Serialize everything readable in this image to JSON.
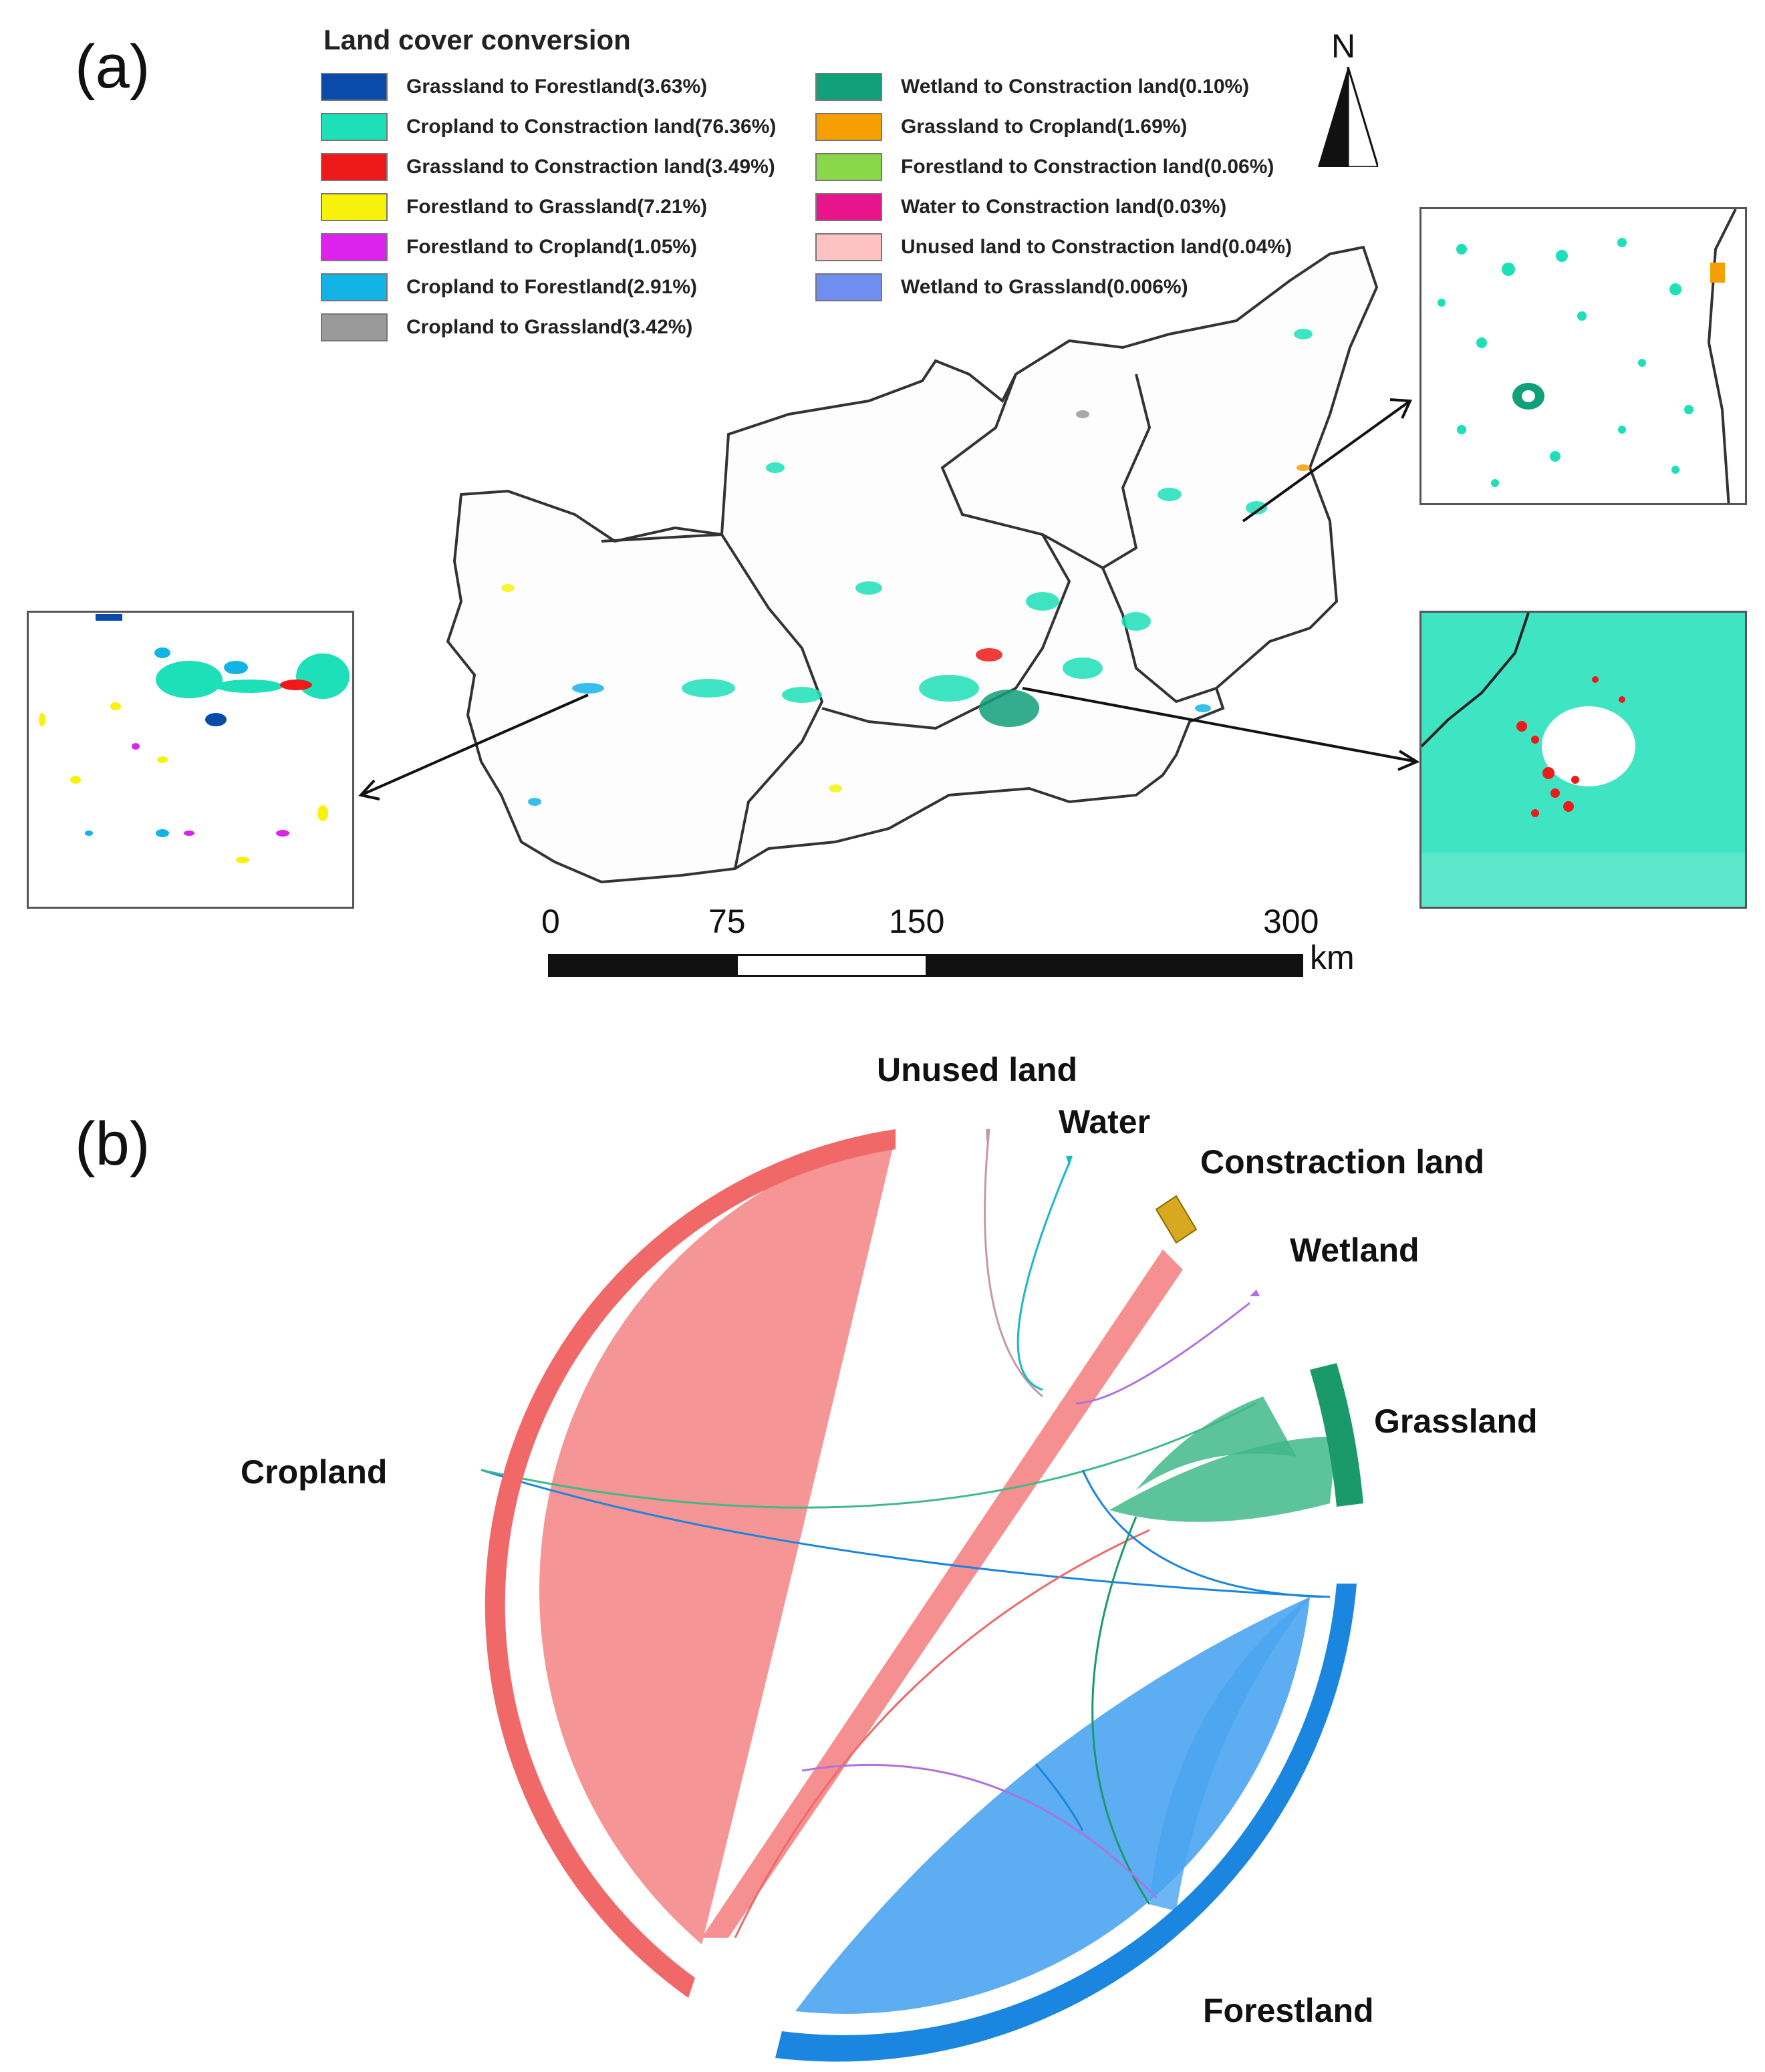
{
  "panel_a": {
    "label": "(a)",
    "legend": {
      "title": "Land cover conversion",
      "items": [
        {
          "label": "Grassland to Forestland(3.63%)",
          "color": "#0a4aa8"
        },
        {
          "label": "Cropland to Constraction land(76.36%)",
          "color": "#1de0b8"
        },
        {
          "label": "Grassland to Constraction land(3.49%)",
          "color": "#ee1a1a"
        },
        {
          "label": "Forestland to Grassland(7.21%)",
          "color": "#f7f20a"
        },
        {
          "label": "Forestland to Cropland(1.05%)",
          "color": "#dd22ee"
        },
        {
          "label": "Cropland to Forestland(2.91%)",
          "color": "#12b4e6"
        },
        {
          "label": "Cropland to Grassland(3.42%)",
          "color": "#9a9a9a"
        },
        {
          "label": "Wetland to Constraction land(0.10%)",
          "color": "#10a07a"
        },
        {
          "label": "Grassland to Cropland(1.69%)",
          "color": "#f5a000"
        },
        {
          "label": "Forestland to Constraction land(0.06%)",
          "color": "#8ad84a"
        },
        {
          "label": "Water to Constraction land(0.03%)",
          "color": "#e8148c"
        },
        {
          "label": "Unused land to Constraction land(0.04%)",
          "color": "#ffc2c2"
        },
        {
          "label": "Wetland to Grassland(0.006%)",
          "color": "#6f8ef0"
        }
      ]
    },
    "north_arrow": {
      "label": "N"
    },
    "scale_bar": {
      "ticks": [
        "0",
        "75",
        "150",
        "300"
      ],
      "unit": "km"
    }
  },
  "panel_b": {
    "label": "(b)",
    "chord_labels": {
      "unused_land": "Unused land",
      "water": "Water",
      "constraction_land": "Constraction land",
      "wetland": "Wetland",
      "grassland": "Grassland",
      "cropland": "Cropland",
      "forestland": "Forestland"
    },
    "colors": {
      "cropland": "#f06868",
      "forestland": "#1a86e0",
      "grassland": "#1a9a6a",
      "constraction_land": "#d8a820",
      "water": "#18b8c8",
      "wetland": "#b070e0",
      "unused_land": "#c898a0"
    }
  }
}
